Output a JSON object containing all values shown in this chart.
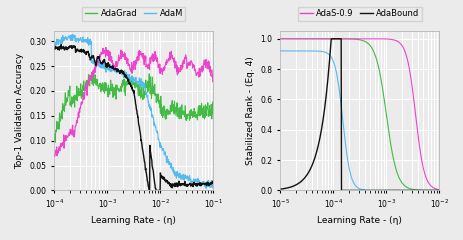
{
  "fig_width": 4.64,
  "fig_height": 2.4,
  "dpi": 100,
  "background_color": "#ebebeb",
  "colors": {
    "AdaGrad": "#44bb44",
    "AdaM": "#55bbee",
    "AdaS-0.9": "#ee44cc",
    "AdaBound": "#111111"
  },
  "left_plot": {
    "xlabel": "Learning Rate - (η)",
    "ylabel": "Top-1 Validation Accuracy",
    "xlim": [
      0.0001,
      0.1
    ],
    "ylim": [
      0.0,
      0.32
    ],
    "yticks": [
      0.0,
      0.05,
      0.1,
      0.15,
      0.2,
      0.25,
      0.3
    ]
  },
  "right_plot": {
    "xlabel": "Learning Rate - (η)",
    "ylabel": "Stabilized Rank - (Eq. 4)",
    "xlim": [
      1e-05,
      0.01
    ],
    "ylim": [
      0.0,
      1.05
    ],
    "yticks": [
      0.0,
      0.2,
      0.4,
      0.6,
      0.8,
      1.0
    ]
  },
  "legend": {
    "labels": [
      "AdaGrad",
      "AdaM",
      "AdaS-0.9",
      "AdaBound"
    ],
    "ncol": 4,
    "fontsize": 6.5,
    "split": true,
    "left_labels": [
      "AdaGrad",
      "AdaM"
    ],
    "right_labels": [
      "AdaS-0.9",
      "AdaBound"
    ]
  }
}
